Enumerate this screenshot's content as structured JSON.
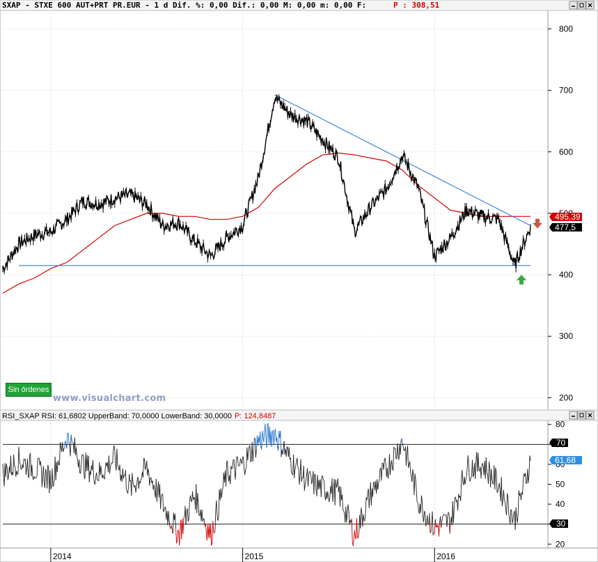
{
  "header": {
    "title_line": "SXAP - STXE 600 AUT+PRT PR.EUR -  1 d Dif. %: 0,00 Dif.: 0,00 M: 0,00 m: 0,00 F:",
    "price_label": "P : 308,51"
  },
  "rsi_header": {
    "title": "RSI_SXAP  RSI: 61,6802  UpperBand: 70,0000  LowerBand: 30,0000",
    "price_label": "P: 124,8487"
  },
  "badges": {
    "orders": "Sin órdenes",
    "watermark": "www.visualchart.com",
    "ma_value": "495,39",
    "last_value": "477,5",
    "rsi_upper": "70",
    "rsi_lower": "30",
    "rsi_last": "61,68"
  },
  "colors": {
    "price": "#000000",
    "moving_average": "#d40000",
    "trendline": "#1f6fd0",
    "rsi_line": "#222222",
    "rsi_overbought": "#1f6fd0",
    "rsi_oversold": "#d40000",
    "ma_badge": "#d40000",
    "last_badge": "#000000",
    "rsi_badge": "#2f8fe0",
    "buy_arrow": "#3aa93a",
    "sell_arrow": "#c65a4a"
  },
  "chart_data": [
    {
      "type": "line",
      "name": "SXAP daily price",
      "x_ticks": [
        "2014",
        "2015",
        "2016"
      ],
      "y_ticks": [
        200,
        300,
        400,
        500,
        600,
        700,
        800
      ],
      "ylim": [
        180,
        830
      ],
      "grid": true,
      "x": [
        "2013-10",
        "2013-11",
        "2013-12",
        "2014-01",
        "2014-02",
        "2014-03",
        "2014-04",
        "2014-05",
        "2014-06",
        "2014-07",
        "2014-08",
        "2014-09",
        "2014-10",
        "2014-11",
        "2014-12",
        "2015-01",
        "2015-02",
        "2015-03",
        "2015-04",
        "2015-05",
        "2015-06",
        "2015-07",
        "2015-08",
        "2015-09",
        "2015-10",
        "2015-11",
        "2015-12",
        "2016-01",
        "2016-02",
        "2016-03",
        "2016-04",
        "2016-05",
        "2016-06",
        "2016-07"
      ],
      "series": [
        {
          "values": [
            410,
            450,
            465,
            470,
            490,
            520,
            515,
            525,
            530,
            515,
            480,
            485,
            455,
            430,
            460,
            480,
            560,
            690,
            660,
            650,
            620,
            590,
            470,
            510,
            540,
            595,
            540,
            430,
            460,
            505,
            495,
            490,
            415,
            478
          ]
        },
        {
          "values": [
            370,
            385,
            395,
            410,
            420,
            440,
            460,
            480,
            490,
            500,
            500,
            495,
            495,
            490,
            490,
            495,
            510,
            540,
            560,
            580,
            595,
            598,
            595,
            590,
            585,
            570,
            545,
            525,
            505,
            500,
            495,
            495,
            495,
            495
          ]
        }
      ],
      "trendlines": [
        {
          "from": [
            "2015-03",
            693
          ],
          "to": [
            "2016-07",
            480
          ]
        },
        {
          "from": [
            "2013-11",
            415
          ],
          "to": [
            "2016-07",
            415
          ]
        }
      ],
      "markers": [
        {
          "kind": "buy-arrow",
          "x": "2016-06",
          "y": 400
        },
        {
          "kind": "sell-arrow",
          "x": "2016-07",
          "y": 482
        }
      ],
      "last_value": 477.5,
      "moving_average_last": 495.39
    },
    {
      "type": "line",
      "name": "RSI",
      "y_ticks": [
        20,
        30,
        40,
        50,
        60,
        70,
        80
      ],
      "ylim": [
        18,
        82
      ],
      "bands": [
        70,
        30
      ],
      "x": [
        "2013-10",
        "2013-11",
        "2013-12",
        "2014-01",
        "2014-02",
        "2014-03",
        "2014-04",
        "2014-05",
        "2014-06",
        "2014-07",
        "2014-08",
        "2014-09",
        "2014-10",
        "2014-11",
        "2014-12",
        "2015-01",
        "2015-02",
        "2015-03",
        "2015-04",
        "2015-05",
        "2015-06",
        "2015-07",
        "2015-08",
        "2015-09",
        "2015-10",
        "2015-11",
        "2015-12",
        "2016-01",
        "2016-02",
        "2016-03",
        "2016-04",
        "2016-05",
        "2016-06",
        "2016-07"
      ],
      "values": [
        55,
        62,
        58,
        52,
        74,
        60,
        55,
        63,
        48,
        58,
        40,
        25,
        45,
        24,
        55,
        60,
        72,
        76,
        62,
        52,
        48,
        46,
        24,
        45,
        58,
        72,
        42,
        28,
        32,
        58,
        60,
        50,
        32,
        61.68
      ],
      "last_value": 61.68
    }
  ]
}
